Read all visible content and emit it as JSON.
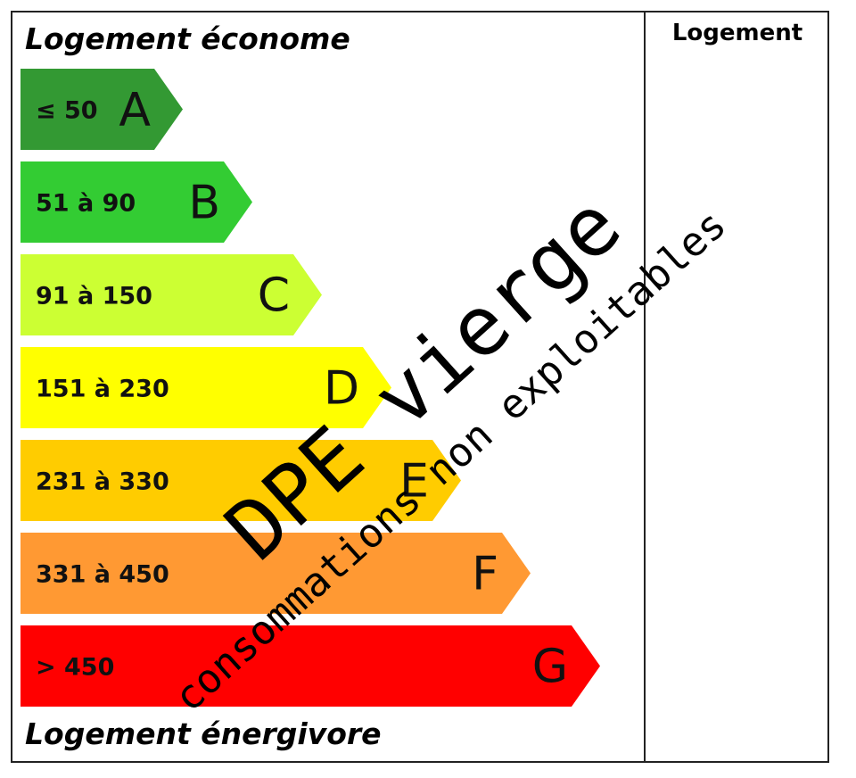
{
  "header": {
    "top_label": "Logement économe",
    "bottom_label": "Logement énergivore",
    "column_label": "Logement"
  },
  "classes": [
    {
      "letter": "A",
      "range": "≤ 50",
      "color": "#339933",
      "letter_color": "#111111",
      "range_color": "#111111"
    },
    {
      "letter": "B",
      "range": "51 à 90",
      "color": "#33cc33",
      "letter_color": "#111111",
      "range_color": "#111111"
    },
    {
      "letter": "C",
      "range": "91 à 150",
      "color": "#ccff33",
      "letter_color": "#111111",
      "range_color": "#111111"
    },
    {
      "letter": "D",
      "range": "151 à 230",
      "color": "#ffff00",
      "letter_color": "#111111",
      "range_color": "#111111"
    },
    {
      "letter": "E",
      "range": "231 à 330",
      "color": "#ffcc00",
      "letter_color": "#111111",
      "range_color": "#111111"
    },
    {
      "letter": "F",
      "range": "331 à 450",
      "color": "#ff9933",
      "letter_color": "#111111",
      "range_color": "#111111"
    },
    {
      "letter": "G",
      "range": "> 450",
      "color": "#ff0000",
      "letter_color": "#ffffff",
      "range_color": "#ffffff"
    }
  ],
  "stamp": {
    "main": "DPE vierge",
    "sub": "consommations non exploitables"
  }
}
